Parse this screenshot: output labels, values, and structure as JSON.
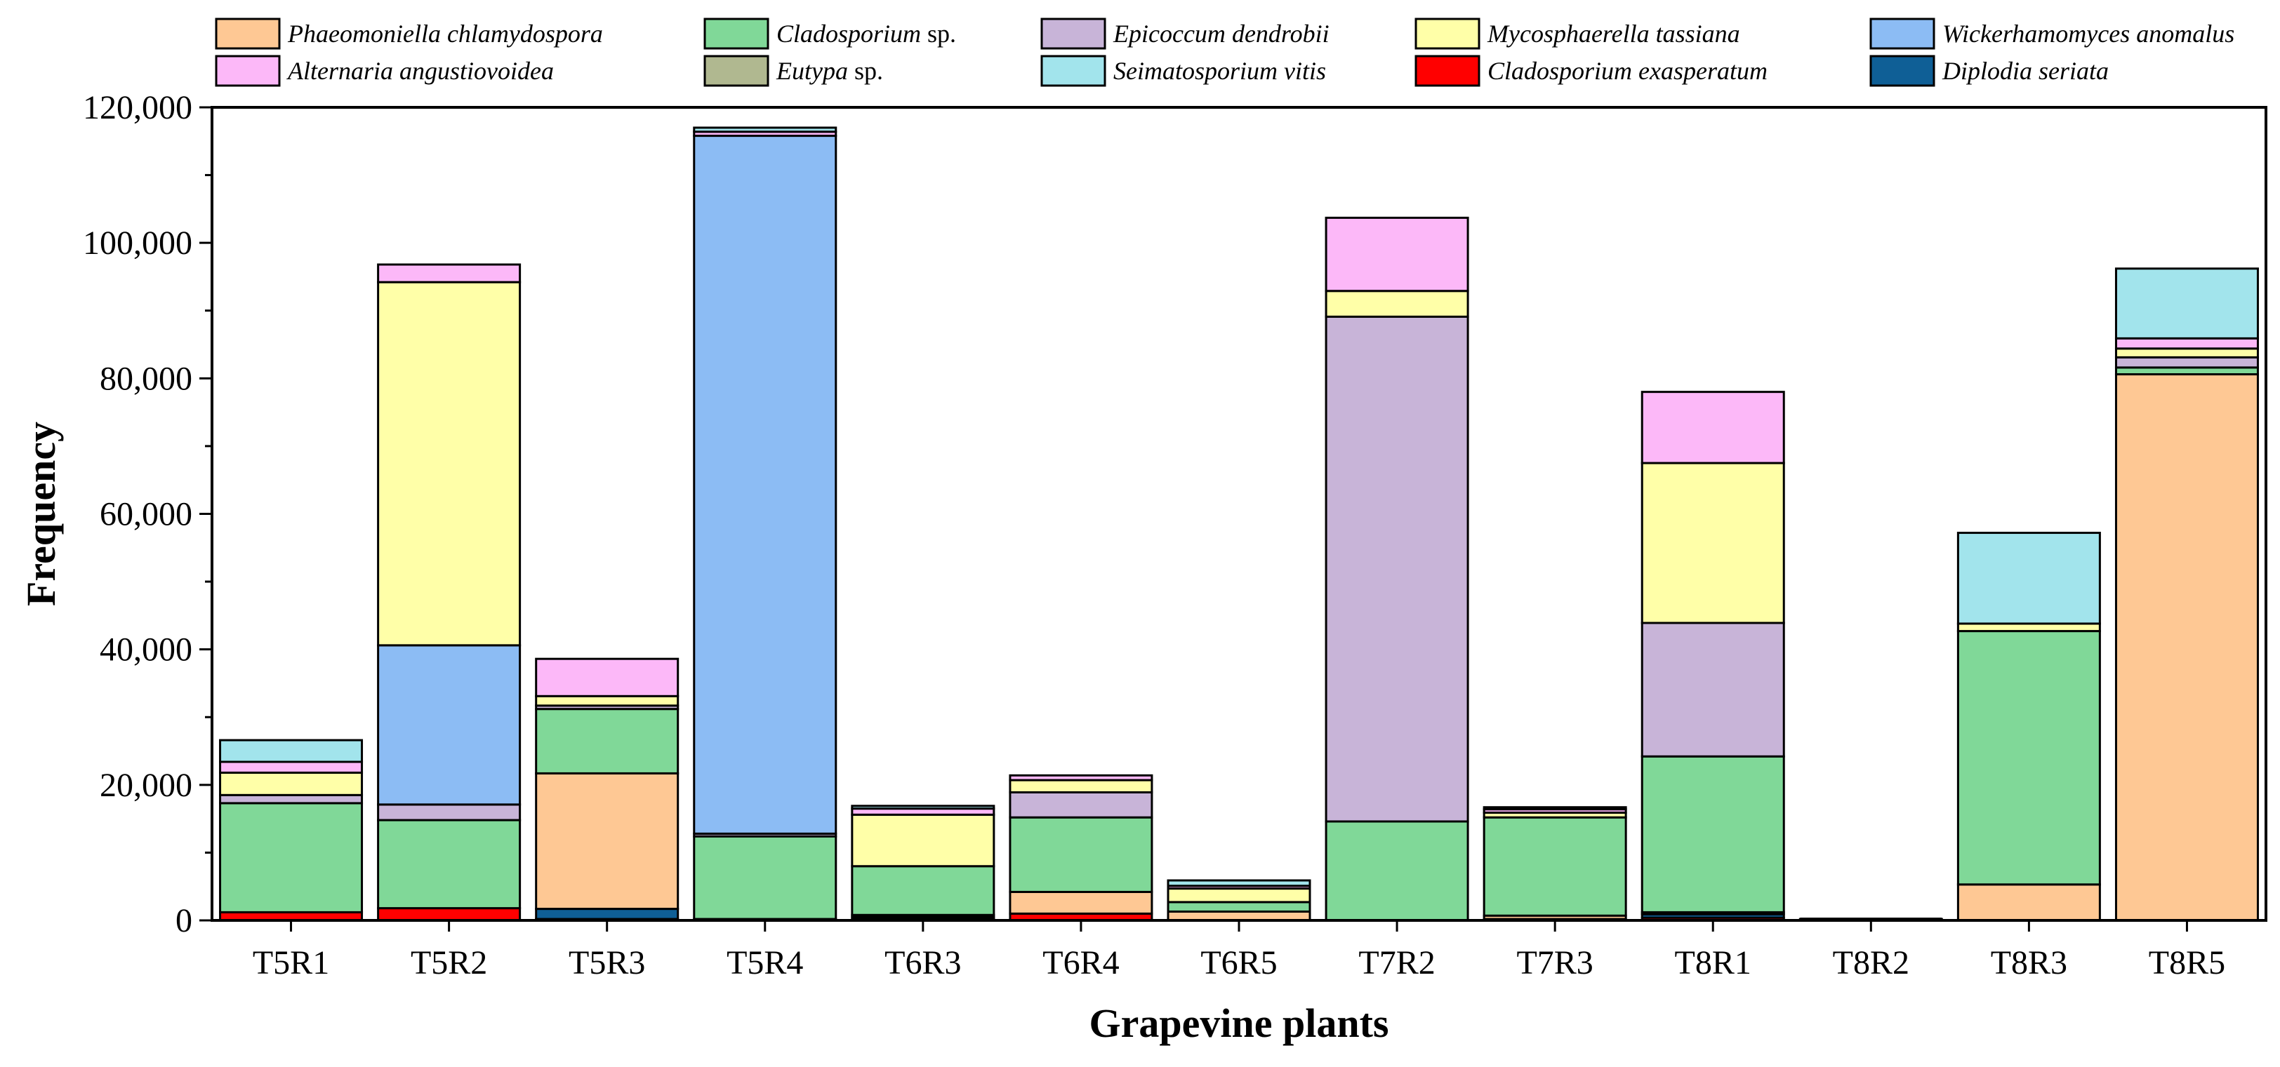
{
  "chart_data": {
    "type": "bar",
    "stacked": true,
    "title": "",
    "xlabel": "Grapevine plants",
    "ylabel": "Frequency",
    "ylim": [
      0,
      120000
    ],
    "yticks": [
      0,
      20000,
      40000,
      60000,
      80000,
      100000,
      120000
    ],
    "ytick_labels": [
      "0",
      "20,000",
      "40,000",
      "60,000",
      "80,000",
      "100,000",
      "120,000"
    ],
    "categories": [
      "T5R1",
      "T5R2",
      "T5R3",
      "T5R4",
      "T6R3",
      "T6R4",
      "T6R5",
      "T7R2",
      "T7R3",
      "T8R1",
      "T8R2",
      "T8R3",
      "T8R5"
    ],
    "legend_position": "top",
    "series": [
      {
        "name": "Cladosporium exasperatum",
        "genus": "Cladosporium",
        "epithet": "exasperatum",
        "color": "#ff0000",
        "values": [
          1200,
          1800,
          200,
          0,
          200,
          1000,
          0,
          0,
          0,
          400,
          0,
          0,
          0
        ]
      },
      {
        "name": "Diplodia seriata",
        "genus": "Diplodia",
        "epithet": "seriata",
        "color": "#0f5f96",
        "values": [
          0,
          0,
          1500,
          0,
          300,
          0,
          0,
          0,
          0,
          500,
          0,
          0,
          0
        ]
      },
      {
        "name": "Eutypa sp.",
        "genus": "Eutypa",
        "epithet": "sp.",
        "color": "#b0b890",
        "values": [
          0,
          0,
          0,
          0,
          0,
          0,
          0,
          0,
          200,
          0,
          0,
          0,
          0
        ]
      },
      {
        "name": "Phaeomoniella chlamydospora",
        "genus": "Phaeomoniella",
        "epithet": "chlamydospora",
        "color": "#fec894",
        "values": [
          0,
          0,
          20000,
          200,
          300,
          3200,
          1300,
          0,
          500,
          300,
          200,
          5300,
          80600
        ]
      },
      {
        "name": "Cladosporium sp.",
        "genus": "Cladosporium",
        "epithet": "sp.",
        "color": "#80d898",
        "values": [
          16100,
          13000,
          9500,
          12200,
          7200,
          11000,
          1400,
          14600,
          14500,
          23000,
          0,
          37400,
          1000
        ]
      },
      {
        "name": "Epicoccum dendrobii",
        "genus": "Epicoccum",
        "epithet": "dendrobii",
        "color": "#c8b4d8",
        "values": [
          1200,
          2300,
          500,
          400,
          0,
          3700,
          0,
          74500,
          0,
          19700,
          0,
          0,
          1500
        ]
      },
      {
        "name": "Wickerhamomyces anomalus",
        "genus": "Wickerhamomyces",
        "epithet": "anomalus",
        "color": "#8cbcf4",
        "values": [
          0,
          23500,
          0,
          103000,
          0,
          0,
          0,
          0,
          0,
          0,
          0,
          0,
          0
        ]
      },
      {
        "name": "Mycosphaerella tassiana",
        "genus": "Mycosphaerella",
        "epithet": "tassiana",
        "color": "#ffffa8",
        "values": [
          3300,
          53600,
          1400,
          0,
          7600,
          1800,
          2000,
          3800,
          700,
          23600,
          0,
          1100,
          1300
        ]
      },
      {
        "name": "Alternaria angustiovoidea",
        "genus": "Alternaria",
        "epithet": "angustiovoidea",
        "color": "#fcb8f8",
        "values": [
          1600,
          2600,
          5500,
          600,
          900,
          700,
          400,
          10800,
          500,
          10500,
          0,
          0,
          1500
        ]
      },
      {
        "name": "Seimatosporium vitis",
        "genus": "Seimatosporium",
        "epithet": "vitis",
        "color": "#a2e4ec",
        "values": [
          3200,
          0,
          0,
          600,
          400,
          0,
          800,
          0,
          300,
          0,
          0,
          13400,
          10300
        ]
      }
    ],
    "legend_order": [
      "Phaeomoniella chlamydospora",
      "Cladosporium sp.",
      "Epicoccum dendrobii",
      "Mycosphaerella tassiana",
      "Wickerhamomyces anomalus",
      "Alternaria angustiovoidea",
      "Eutypa sp.",
      "Seimatosporium vitis",
      "Cladosporium exasperatum",
      "Diplodia seriata"
    ]
  }
}
